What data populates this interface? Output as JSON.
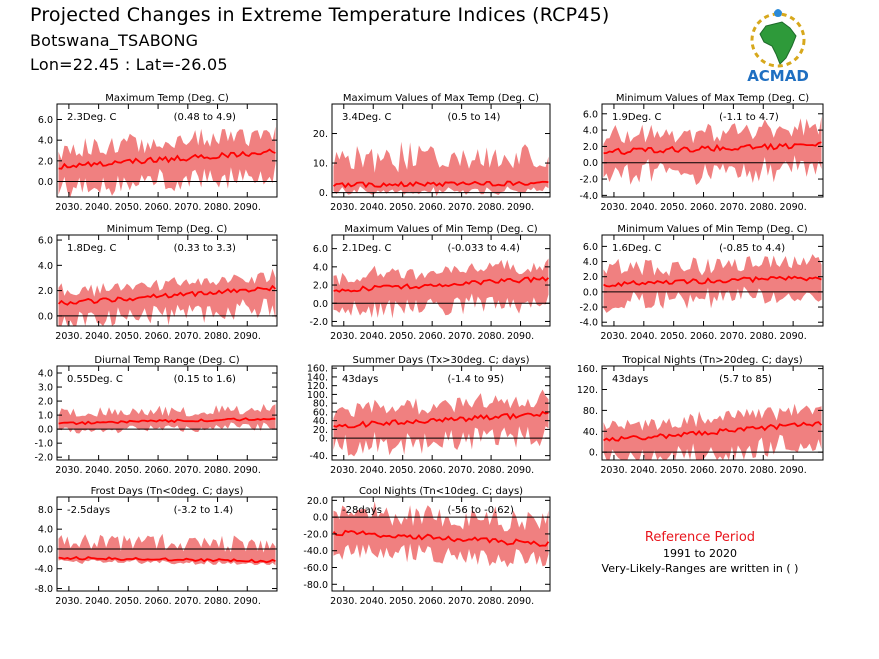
{
  "header": {
    "title": "Projected Changes in Extreme Temperature Indices (RCP45)",
    "station": "Botswana_TSABONG",
    "coords": "Lon=22.45 : Lat=-26.05"
  },
  "logo": {
    "text": "ACMAD",
    "icon": "africa-logo-icon"
  },
  "reference": {
    "title": "Reference Period",
    "years": "1991 to 2020",
    "note": "Very-Likely-Ranges are written in ( )"
  },
  "colors": {
    "band": "#f08080",
    "line": "#ff0000",
    "ref_title": "#e8161d"
  },
  "chart_data": [
    {
      "type": "line",
      "title": "Maximum Temp (Deg. C)",
      "value_label": "2.3Deg. C",
      "range_label": "(0.48 to 4.9)",
      "x_ticks": [
        "2030.",
        "2040.",
        "2050.",
        "2060.",
        "2070.",
        "2080.",
        "2090."
      ],
      "x_range": [
        2026,
        2100
      ],
      "ylim": [
        -1.5,
        7.5
      ],
      "y_ticks": [
        0,
        2,
        4,
        6
      ],
      "y_tick_labels": [
        "0.0",
        "2.0",
        "4.0",
        "6.0"
      ],
      "median_start": 1.4,
      "median_end": 2.9,
      "band_low": 0.48,
      "band_high": 4.9
    },
    {
      "type": "line",
      "title": "Maximum Values of Max Temp (Deg. C)",
      "value_label": "3.4Deg. C",
      "range_label": "(0.5 to 14)",
      "x_ticks": [
        "2030.",
        "2040.",
        "2050.",
        "2060.",
        "2070.",
        "2080.",
        "2090."
      ],
      "x_range": [
        2026,
        2100
      ],
      "ylim": [
        -1.5,
        30
      ],
      "y_ticks": [
        0,
        10,
        20
      ],
      "y_tick_labels": [
        "0.",
        "10.",
        "20."
      ],
      "median_start": 2.5,
      "median_end": 3.4,
      "band_low": 0.5,
      "band_high": 14
    },
    {
      "type": "line",
      "title": "Minimum Values of Max Temp (Deg. C)",
      "value_label": "1.9Deg. C",
      "range_label": "(-1.1 to 4.7)",
      "x_ticks": [
        "2030.",
        "2040.",
        "2050.",
        "2060.",
        "2070.",
        "2080.",
        "2090."
      ],
      "x_range": [
        2026,
        2100
      ],
      "ylim": [
        -4.2,
        7.2
      ],
      "y_ticks": [
        -4,
        -2,
        0,
        2,
        4,
        6
      ],
      "y_tick_labels": [
        "-4.0",
        "-2.0",
        "0.0",
        "2.0",
        "4.0",
        "6.0"
      ],
      "median_start": 1.3,
      "median_end": 2.2,
      "band_low": -1.1,
      "band_high": 4.7
    },
    {
      "type": "line",
      "title": "Minimum Temp (Deg. C)",
      "value_label": "1.8Deg. C",
      "range_label": "(0.33 to 3.3)",
      "x_ticks": [
        "2030.",
        "2040.",
        "2050.",
        "2060.",
        "2070.",
        "2080.",
        "2090."
      ],
      "x_range": [
        2026,
        2100
      ],
      "ylim": [
        -0.8,
        6.4
      ],
      "y_ticks": [
        0,
        2,
        4,
        6
      ],
      "y_tick_labels": [
        "0.0",
        "2.0",
        "4.0",
        "6.0"
      ],
      "median_start": 1.0,
      "median_end": 2.2,
      "band_low": 0.33,
      "band_high": 3.3
    },
    {
      "type": "line",
      "title": "Maximum Values of Min Temp (Deg. C)",
      "value_label": "2.1Deg. C",
      "range_label": "(-0.033 to 4.4)",
      "x_ticks": [
        "2030.",
        "2040.",
        "2050.",
        "2060.",
        "2070.",
        "2080.",
        "2090."
      ],
      "x_range": [
        2026,
        2100
      ],
      "ylim": [
        -2.5,
        7.5
      ],
      "y_ticks": [
        -2,
        0,
        2,
        4,
        6
      ],
      "y_tick_labels": [
        "-2.0",
        "0.0",
        "2.0",
        "4.0",
        "6.0"
      ],
      "median_start": 1.4,
      "median_end": 2.7,
      "band_low": -0.033,
      "band_high": 4.4
    },
    {
      "type": "line",
      "title": "Minimum Values of Min Temp (Deg. C)",
      "value_label": "1.6Deg. C",
      "range_label": "(-0.85 to 4.4)",
      "x_ticks": [
        "2030.",
        "2040.",
        "2050.",
        "2060.",
        "2070.",
        "2080.",
        "2090."
      ],
      "x_range": [
        2026,
        2100
      ],
      "ylim": [
        -4.5,
        7.5
      ],
      "y_ticks": [
        -4,
        -2,
        0,
        2,
        4,
        6
      ],
      "y_tick_labels": [
        "-4.0",
        "-2.0",
        "0.0",
        "2.0",
        "4.0",
        "6.0"
      ],
      "median_start": 1.0,
      "median_end": 1.9,
      "band_low": -0.85,
      "band_high": 4.4
    },
    {
      "type": "line",
      "title": "Diurnal Temp Range (Deg. C)",
      "value_label": "0.55Deg. C",
      "range_label": "(0.15 to 1.6)",
      "x_ticks": [
        "2030.",
        "2040.",
        "2050.",
        "2060.",
        "2070.",
        "2080.",
        "2090."
      ],
      "x_range": [
        2026,
        2100
      ],
      "ylim": [
        -2.2,
        4.5
      ],
      "y_ticks": [
        -2,
        -1,
        0,
        1,
        2,
        3,
        4
      ],
      "y_tick_labels": [
        "-2.0",
        "-1.0",
        "0.0",
        "1.0",
        "2.0",
        "3.0",
        "4.0"
      ],
      "median_start": 0.4,
      "median_end": 0.75,
      "band_low": 0.15,
      "band_high": 1.6
    },
    {
      "type": "line",
      "title": "Summer Days (Tx>30deg. C; days)",
      "value_label": "43days",
      "range_label": "(-1.4 to 95)",
      "x_ticks": [
        "2030.",
        "2040.",
        "2050.",
        "2060.",
        "2070.",
        "2080.",
        "2090."
      ],
      "x_range": [
        2026,
        2100
      ],
      "ylim": [
        -50,
        165
      ],
      "y_ticks": [
        -40,
        0,
        20,
        40,
        60,
        80,
        100,
        120,
        140,
        160
      ],
      "y_tick_labels": [
        "-40.",
        "0.",
        "20.",
        "40.",
        "60.",
        "80.",
        "100.",
        "120.",
        "140.",
        "160."
      ],
      "median_start": 28,
      "median_end": 55,
      "band_low": -1.4,
      "band_high": 95
    },
    {
      "type": "line",
      "title": "Tropical Nights (Tn>20deg. C; days)",
      "value_label": "43days",
      "range_label": "(5.7 to 85)",
      "x_ticks": [
        "2030.",
        "2040.",
        "2050.",
        "2060.",
        "2070.",
        "2080.",
        "2090."
      ],
      "x_range": [
        2026,
        2100
      ],
      "ylim": [
        -15,
        165
      ],
      "y_ticks": [
        0,
        40,
        80,
        120,
        160
      ],
      "y_tick_labels": [
        "0.",
        "40.",
        "80.",
        "120.",
        "160."
      ],
      "median_start": 22,
      "median_end": 55,
      "band_low": 5.7,
      "band_high": 85
    },
    {
      "type": "line",
      "title": "Frost Days (Tn<0deg. C; days)",
      "value_label": "-2.5days",
      "range_label": "(-3.2 to 1.4)",
      "x_ticks": [
        "2030.",
        "2040.",
        "2050.",
        "2060.",
        "2070.",
        "2080.",
        "2090."
      ],
      "x_range": [
        2026,
        2100
      ],
      "ylim": [
        -8.5,
        10.5
      ],
      "y_ticks": [
        -8,
        -4,
        0,
        4,
        8
      ],
      "y_tick_labels": [
        "-8.0",
        "-4.0",
        "0.0",
        "4.0",
        "8.0"
      ],
      "median_start": -1.8,
      "median_end": -2.5,
      "band_low": -3.2,
      "band_high": 1.4
    },
    {
      "type": "line",
      "title": "Cool Nights (Tn<10deg. C; days)",
      "value_label": "-28days",
      "range_label": "(-56 to -0.62)",
      "x_ticks": [
        "2030.",
        "2040.",
        "2050.",
        "2060.",
        "2070.",
        "2080.",
        "2090."
      ],
      "x_range": [
        2026,
        2100
      ],
      "ylim": [
        -88,
        24
      ],
      "y_ticks": [
        -80,
        -60,
        -40,
        -20,
        0,
        20
      ],
      "y_tick_labels": [
        "-80.0",
        "-60.0",
        "-40.0",
        "-20.0",
        "0.0",
        "20.0"
      ],
      "median_start": -18,
      "median_end": -32,
      "band_low": -56,
      "band_high": -0.62
    }
  ]
}
